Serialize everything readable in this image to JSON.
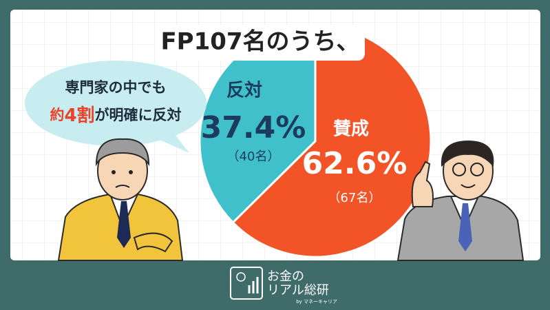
{
  "chart_data": {
    "type": "pie",
    "title": "FP107名のうち、",
    "categories": [
      "反対",
      "賛成"
    ],
    "values": [
      37.4,
      62.6
    ],
    "value_labels": [
      "37.4%",
      "62.6%"
    ],
    "sublabels": [
      "（40名）",
      "（67名）"
    ],
    "colors": [
      "#3fc0cb",
      "#f25428"
    ],
    "annotation": {
      "line1": "専門家の中でも",
      "line2": [
        "約",
        "4割",
        "が明確に反対"
      ]
    }
  },
  "footer": {
    "brand_line1": "お金の",
    "brand_line2": "リアル総研",
    "byline": "by マネーキャリア"
  }
}
